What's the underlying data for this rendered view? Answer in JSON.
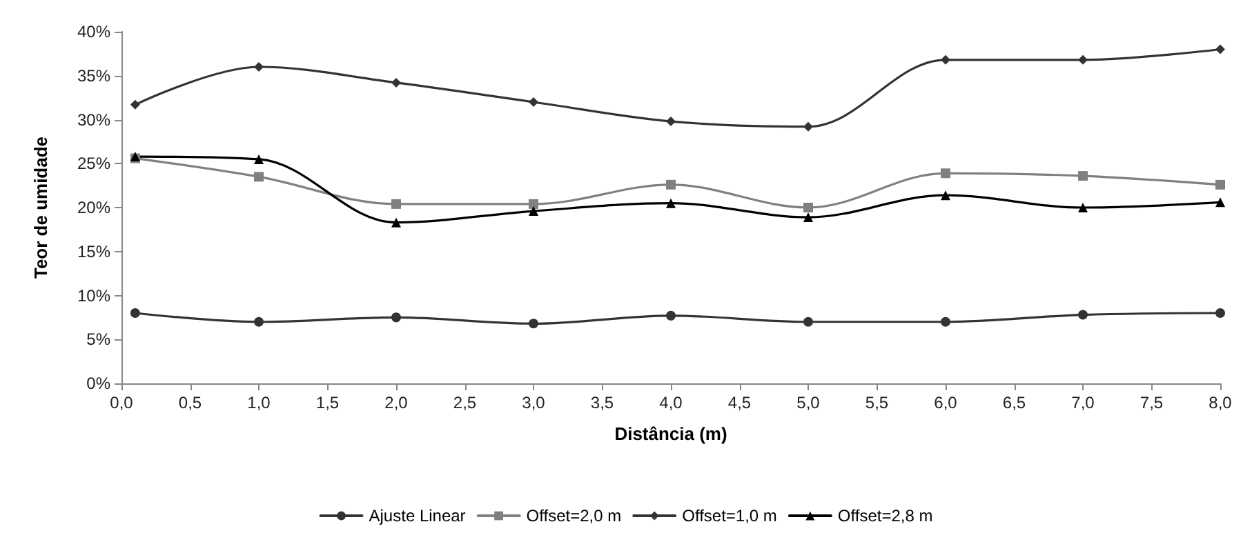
{
  "chart_data": {
    "type": "line",
    "xlabel": "Distância (m)",
    "ylabel": "Teor de umidade",
    "x": [
      0.1,
      1,
      2,
      3,
      4,
      5,
      6,
      7,
      8
    ],
    "series": [
      {
        "name": "Ajuste Linear",
        "color": "#333333",
        "marker": "circle",
        "values": [
          8,
          7,
          7.5,
          6.8,
          7.7,
          7,
          7,
          7.8,
          8
        ]
      },
      {
        "name": "Offset=2,0 m",
        "color": "#808080",
        "marker": "square",
        "values": [
          25.6,
          23.5,
          20.4,
          20.4,
          22.6,
          20,
          23.9,
          23.6,
          22.6
        ]
      },
      {
        "name": "Offset=1,0 m",
        "color": "#333333",
        "marker": "diamond",
        "values": [
          31.7,
          36,
          34.2,
          32,
          29.8,
          29.2,
          36.8,
          36.8,
          38
        ]
      },
      {
        "name": "Offset=2,8 m",
        "color": "#000000",
        "marker": "triangle",
        "values": [
          25.8,
          25.5,
          18.3,
          19.6,
          20.5,
          18.9,
          21.4,
          20,
          20.6
        ]
      }
    ],
    "xlim": [
      0,
      8
    ],
    "xticks": [
      {
        "value": 0,
        "label": "0,0"
      },
      {
        "value": 0.5,
        "label": "0,5"
      },
      {
        "value": 1,
        "label": "1,0"
      },
      {
        "value": 1.5,
        "label": "1,5"
      },
      {
        "value": 2,
        "label": "2,0"
      },
      {
        "value": 2.5,
        "label": "2,5"
      },
      {
        "value": 3,
        "label": "3,0"
      },
      {
        "value": 3.5,
        "label": "3,5"
      },
      {
        "value": 4,
        "label": "4,0"
      },
      {
        "value": 4.5,
        "label": "4,5"
      },
      {
        "value": 5,
        "label": "5,0"
      },
      {
        "value": 5.5,
        "label": "5,5"
      },
      {
        "value": 6,
        "label": "6,0"
      },
      {
        "value": 6.5,
        "label": "6,5"
      },
      {
        "value": 7,
        "label": "7,0"
      },
      {
        "value": 7.5,
        "label": "7,5"
      },
      {
        "value": 8,
        "label": "8,0"
      }
    ],
    "ylim": [
      0,
      40
    ],
    "yticks": [
      {
        "value": 0,
        "label": "0%"
      },
      {
        "value": 5,
        "label": "5%"
      },
      {
        "value": 10,
        "label": "10%"
      },
      {
        "value": 15,
        "label": "15%"
      },
      {
        "value": 20,
        "label": "20%"
      },
      {
        "value": 25,
        "label": "25%"
      },
      {
        "value": 30,
        "label": "30%"
      },
      {
        "value": 35,
        "label": "35%"
      },
      {
        "value": 40,
        "label": "40%"
      }
    ],
    "grid": false,
    "legend": "bottom",
    "line_style": "solid"
  }
}
